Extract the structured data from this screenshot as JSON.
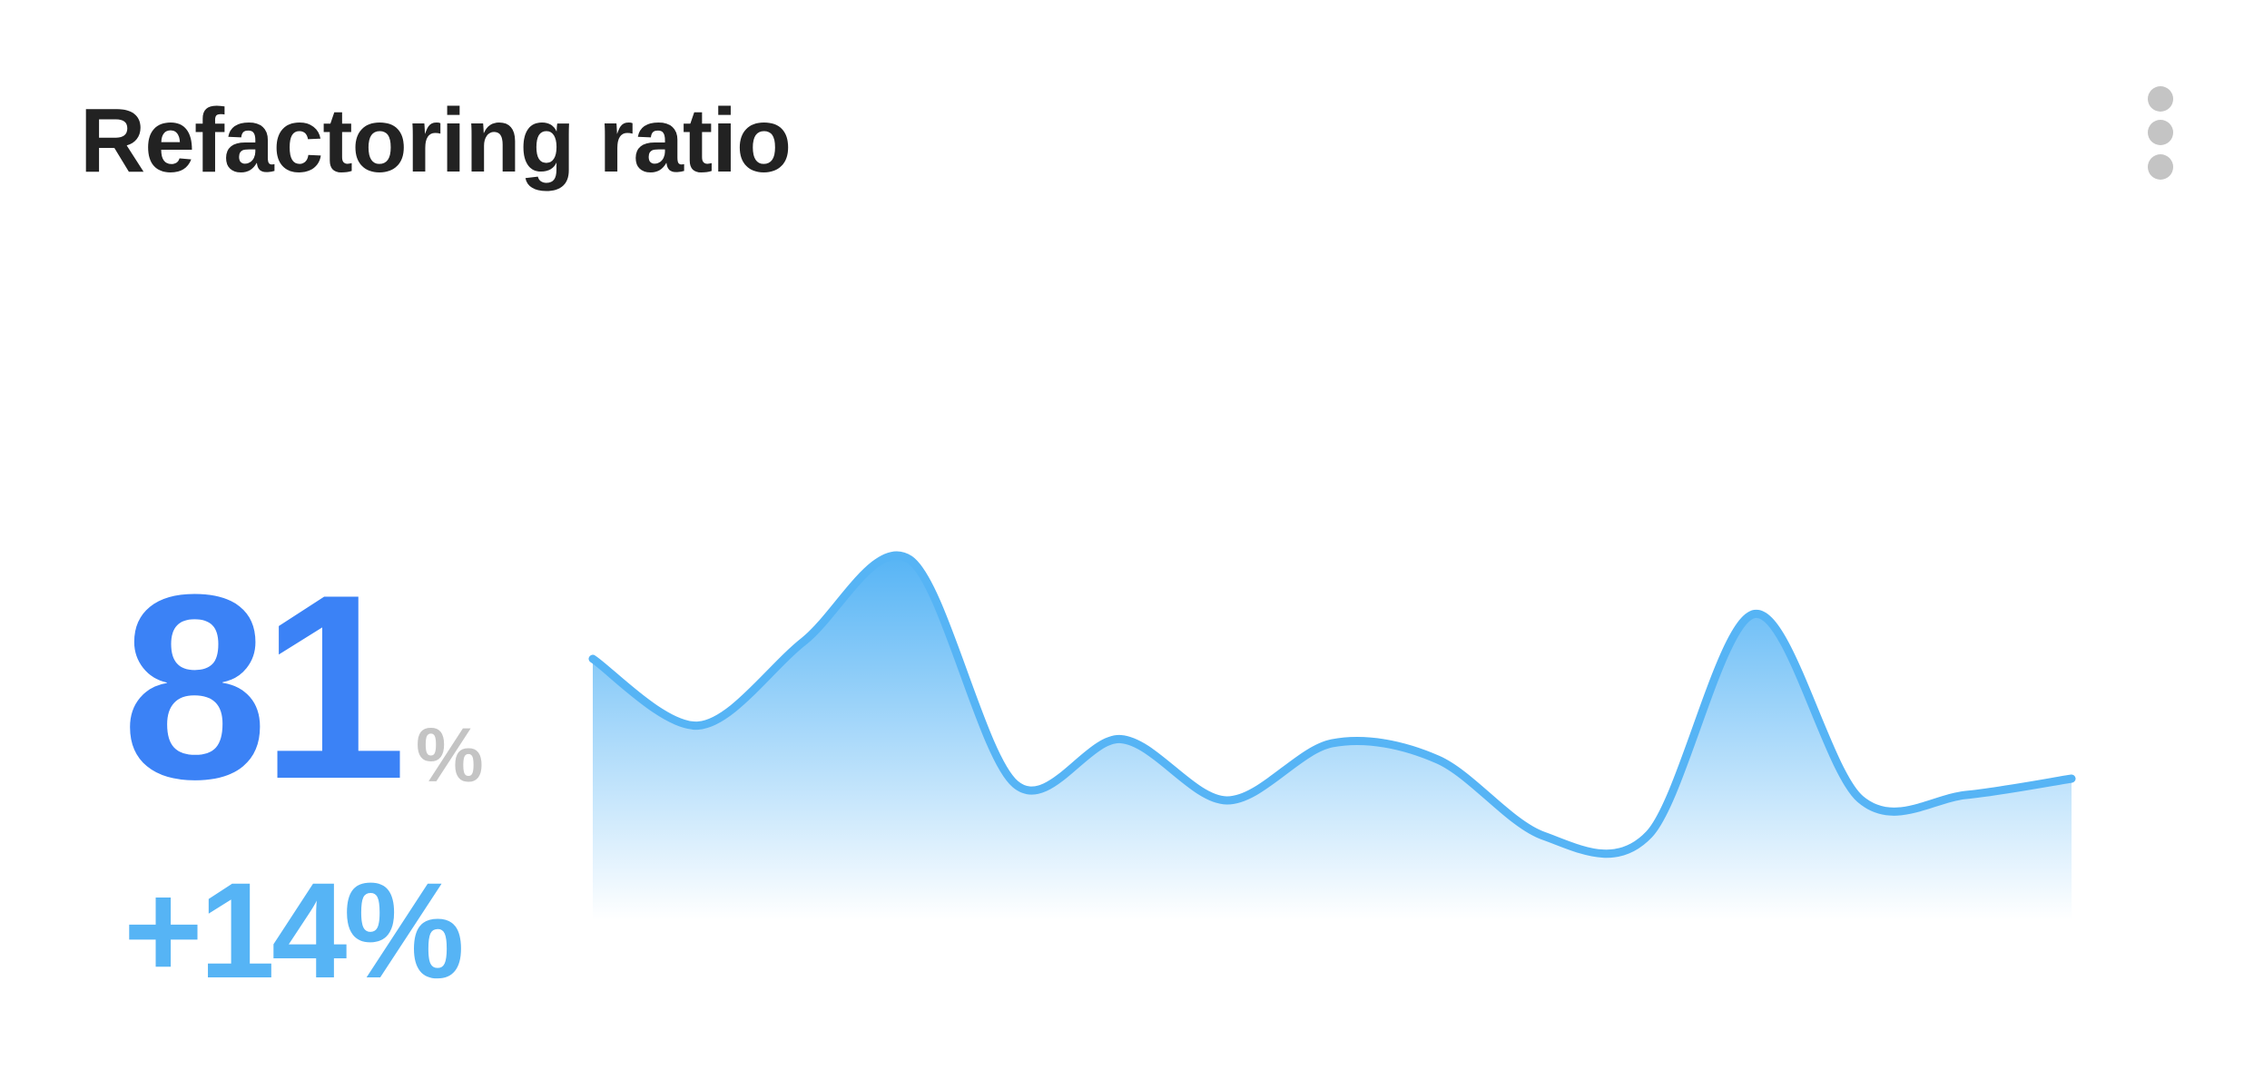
{
  "card": {
    "title": "Refactoring ratio",
    "menu_icon": "more-vertical-icon",
    "value": "81",
    "value_unit": "%",
    "change": "+14%"
  },
  "colors": {
    "value": "#3b82f6",
    "change": "#56b4f5",
    "line": "#56b4f5",
    "unit": "#c4c4c4"
  },
  "chart_data": {
    "type": "area",
    "x": [
      0,
      1,
      2,
      3,
      4,
      5,
      6,
      7,
      8,
      9,
      10,
      11,
      12,
      13,
      14
    ],
    "values": [
      192,
      143,
      205,
      265,
      100,
      133,
      88,
      130,
      118,
      62,
      63,
      225,
      89,
      92,
      104
    ],
    "ylim": [
      0,
      280
    ],
    "grid": false,
    "axes": false,
    "legend": "none"
  }
}
